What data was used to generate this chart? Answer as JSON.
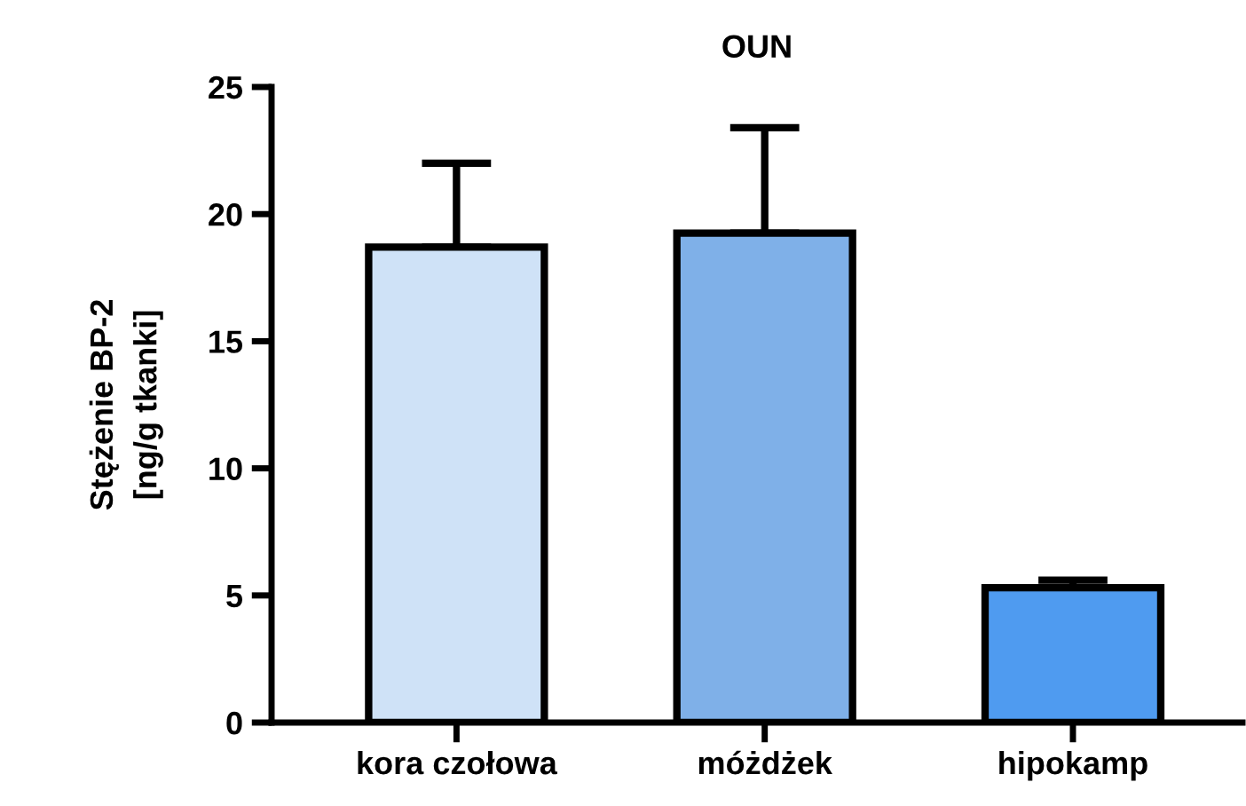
{
  "chart_data": {
    "type": "bar",
    "title": "OUN",
    "ylabel": "Stężenie BP-2\n[ng/g tkanki]",
    "categories": [
      "kora czołowa",
      "móżdżek",
      "hipokamp"
    ],
    "values": [
      18.7,
      19.25,
      5.3
    ],
    "errors": [
      [
        18.7,
        22.0
      ],
      [
        19.25,
        23.4
      ],
      [
        5.3,
        5.6
      ]
    ],
    "colors": [
      "#cfe2f7",
      "#7fb0e8",
      "#4f9bf0"
    ],
    "ylim": [
      0,
      25
    ],
    "yticks": [
      0,
      5,
      10,
      15,
      20,
      25
    ],
    "grid": false,
    "legend": false
  }
}
